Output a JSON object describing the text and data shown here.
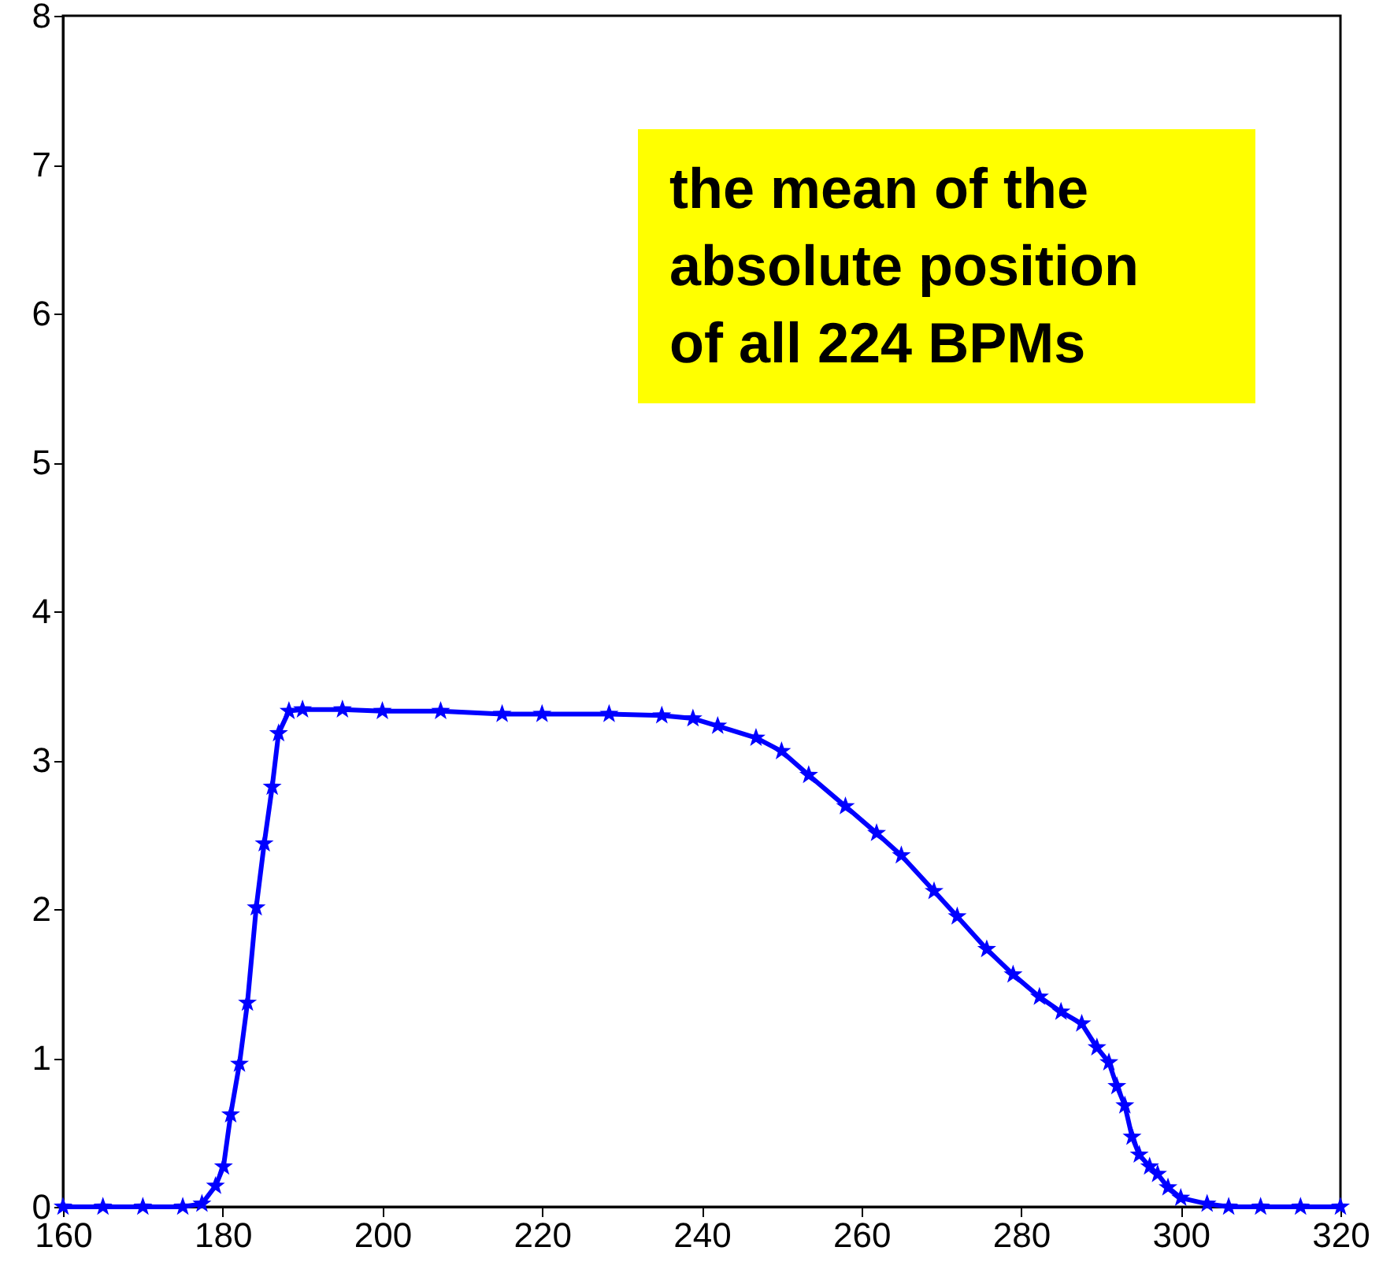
{
  "chart_data": {
    "type": "line",
    "x": [
      160,
      165,
      170,
      175,
      177.4,
      179.1,
      180.1,
      181.0,
      182.1,
      183.1,
      184.2,
      185.2,
      186.2,
      187.0,
      188.3,
      190,
      195,
      200,
      207.3,
      215,
      220,
      228.4,
      235,
      238.9,
      242,
      246.8,
      250,
      253.4,
      258,
      261.9,
      265,
      269.1,
      272,
      275.7,
      279,
      282.3,
      285,
      287.6,
      289.5,
      291.0,
      292.0,
      293.0,
      293.9,
      294.8,
      296.1,
      297.1,
      298.4,
      300.0,
      303.3,
      306,
      310,
      315,
      320
    ],
    "series": [
      {
        "color": "#0000ff",
        "values": [
          0,
          0,
          0,
          0,
          0.02,
          0.14,
          0.27,
          0.62,
          0.96,
          1.37,
          2.01,
          2.44,
          2.82,
          3.18,
          3.33,
          3.34,
          3.34,
          3.33,
          3.33,
          3.31,
          3.31,
          3.31,
          3.3,
          3.28,
          3.23,
          3.15,
          3.06,
          2.9,
          2.69,
          2.51,
          2.36,
          2.12,
          1.95,
          1.73,
          1.56,
          1.41,
          1.31,
          1.23,
          1.07,
          0.97,
          0.81,
          0.68,
          0.47,
          0.35,
          0.27,
          0.22,
          0.13,
          0.06,
          0.02,
          0,
          0,
          0,
          0
        ]
      }
    ],
    "xlim": [
      160,
      320
    ],
    "xticks": [
      160,
      180,
      200,
      220,
      240,
      260,
      280,
      300,
      320
    ],
    "ylim": [
      0,
      8
    ],
    "yticks": [
      0,
      1,
      2,
      3,
      4,
      5,
      6,
      7,
      8
    ],
    "grid": false,
    "marker": "star",
    "line_style": "solid",
    "annotations": [
      "the mean of the absolute position of all 224 BPMs"
    ]
  }
}
